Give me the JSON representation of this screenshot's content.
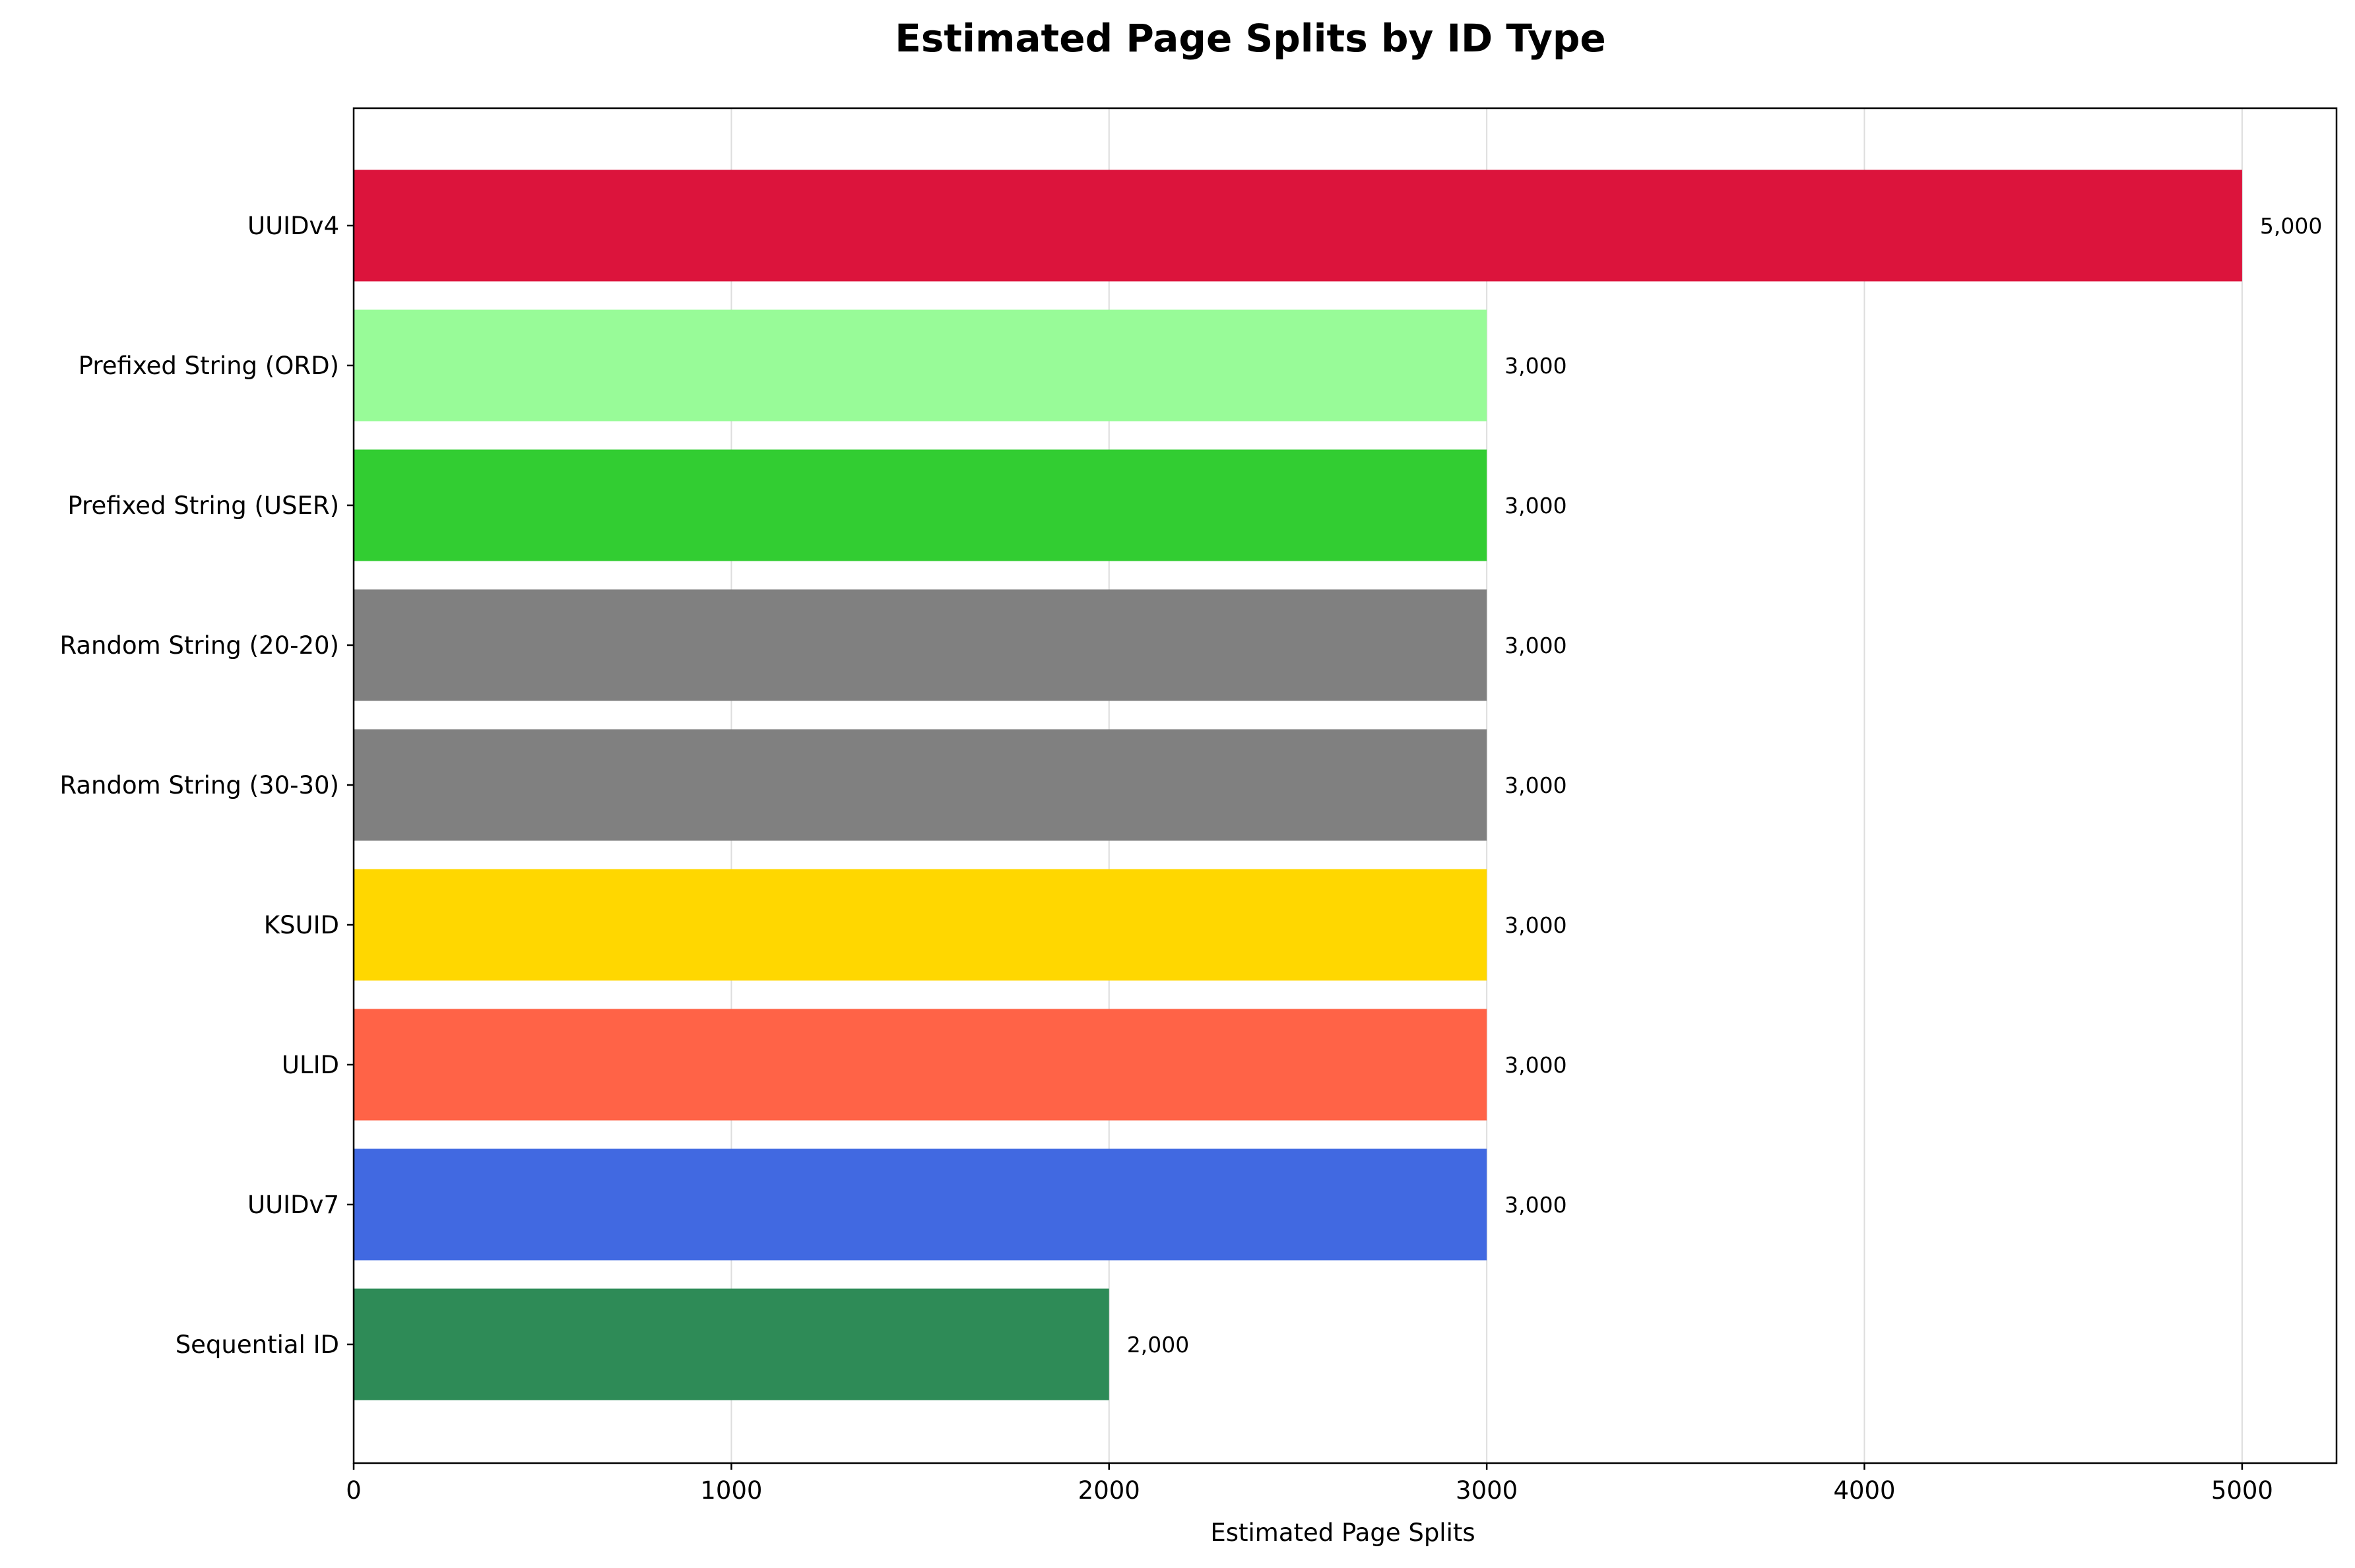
{
  "chart_data": {
    "type": "bar",
    "orientation": "horizontal",
    "title": "Estimated Page Splits by ID Type",
    "xlabel": "Estimated Page Splits",
    "ylabel": "",
    "xlim": [
      0,
      5250
    ],
    "xticks": [
      0,
      1000,
      2000,
      3000,
      4000,
      5000
    ],
    "xtick_labels": [
      "0",
      "1000",
      "2000",
      "3000",
      "4000",
      "5000"
    ],
    "grid": "vertical",
    "legend": "none",
    "categories": [
      "UUIDv4",
      "Prefixed String (ORD)",
      "Prefixed String (USER)",
      "Random String (20-20)",
      "Random String (30-30)",
      "KSUID",
      "ULID",
      "UUIDv7",
      "Sequential ID"
    ],
    "values": [
      5000,
      3000,
      3000,
      3000,
      3000,
      3000,
      3000,
      3000,
      2000
    ],
    "data_labels": [
      "5,000",
      "3,000",
      "3,000",
      "3,000",
      "3,000",
      "3,000",
      "3,000",
      "3,000",
      "2,000"
    ],
    "colors": [
      "#DC143C",
      "#98FB98",
      "#32CD32",
      "#808080",
      "#808080",
      "#FFD700",
      "#FF6347",
      "#4169E1",
      "#2E8B57"
    ]
  }
}
